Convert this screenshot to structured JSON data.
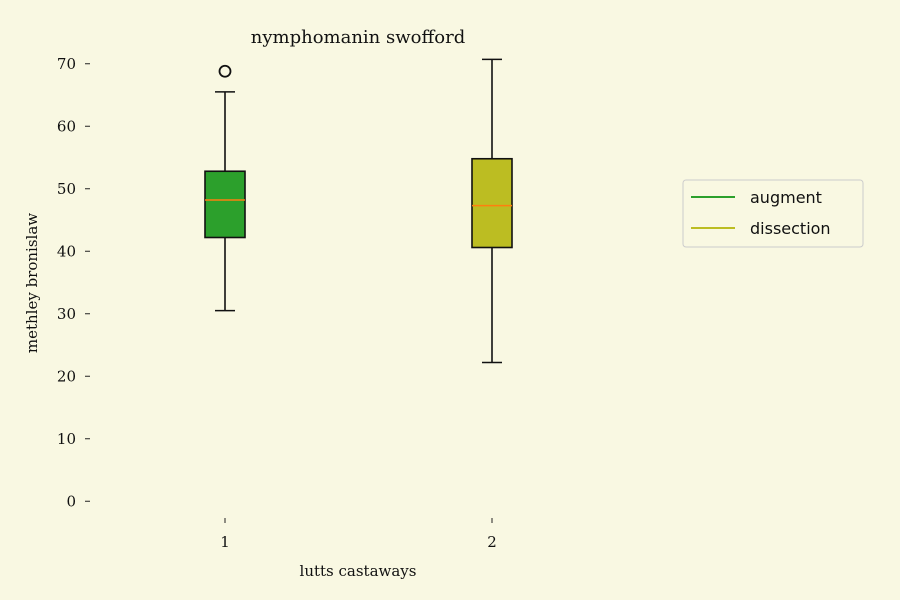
{
  "chart_data": {
    "type": "box",
    "title": "nymphomanin swofford",
    "xlabel": "lutts castaways",
    "ylabel": "methley bronislaw",
    "ylim": [
      -3,
      73
    ],
    "yticks": [
      0,
      10,
      20,
      30,
      40,
      50,
      60,
      70
    ],
    "categories": [
      "1",
      "2"
    ],
    "series": [
      {
        "name": "augment",
        "color": "#2ca02c",
        "whisker_low": 30.5,
        "q1": 42.2,
        "median": 48.2,
        "q3": 52.8,
        "whisker_high": 65.5,
        "outliers": [
          68.8
        ]
      },
      {
        "name": "dissection",
        "color": "#bcbd22",
        "whisker_low": 22.2,
        "q1": 40.6,
        "median": 47.3,
        "q3": 54.8,
        "whisker_high": 70.7,
        "outliers": []
      }
    ],
    "median_color": "#ff7f0e",
    "legend_position": "right",
    "grid": false
  }
}
